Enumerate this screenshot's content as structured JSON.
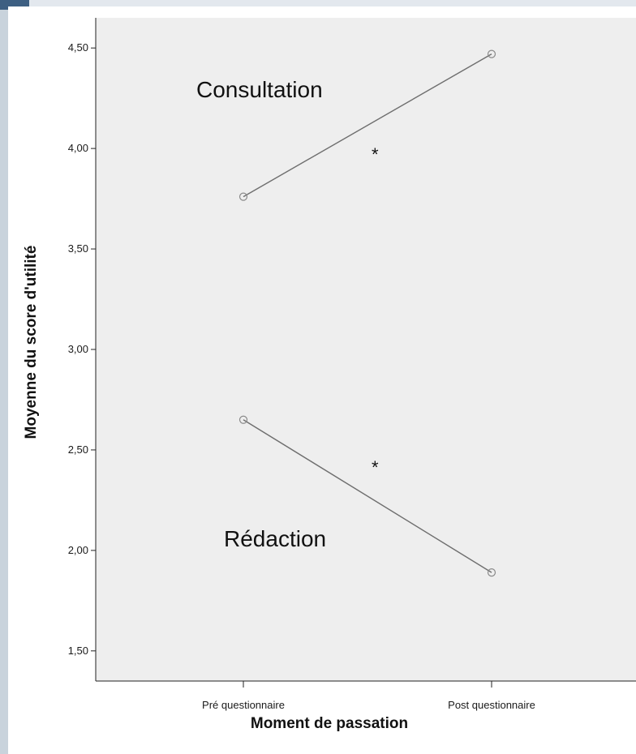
{
  "chart_data": {
    "type": "line",
    "categories": [
      "Pré questionnaire",
      "Post questionnaire"
    ],
    "series": [
      {
        "values": [
          3.76,
          4.47
        ]
      },
      {
        "values": [
          2.65,
          1.89
        ]
      }
    ],
    "ylabel": "Moyenne du score d'utilité",
    "xlabel": "Moment de passation",
    "ylim": [
      1.35,
      4.65
    ],
    "yticks": [
      {
        "value": 1.5,
        "label": "1,50"
      },
      {
        "value": 2.0,
        "label": "2,00"
      },
      {
        "value": 2.5,
        "label": "2,50"
      },
      {
        "value": 3.0,
        "label": "3,00"
      },
      {
        "value": 3.5,
        "label": "3,50"
      },
      {
        "value": 4.0,
        "label": "4,00"
      },
      {
        "value": 4.5,
        "label": "4,50"
      }
    ],
    "annotations": [
      {
        "text": "Consultation"
      },
      {
        "text": "*"
      },
      {
        "text": "*"
      },
      {
        "text": "Rédaction"
      }
    ],
    "grid": false,
    "legend": "none",
    "colors": {
      "plot_background": "#eeeeee",
      "line": "#6e6e6e",
      "marker": "#8a8a8a"
    }
  }
}
